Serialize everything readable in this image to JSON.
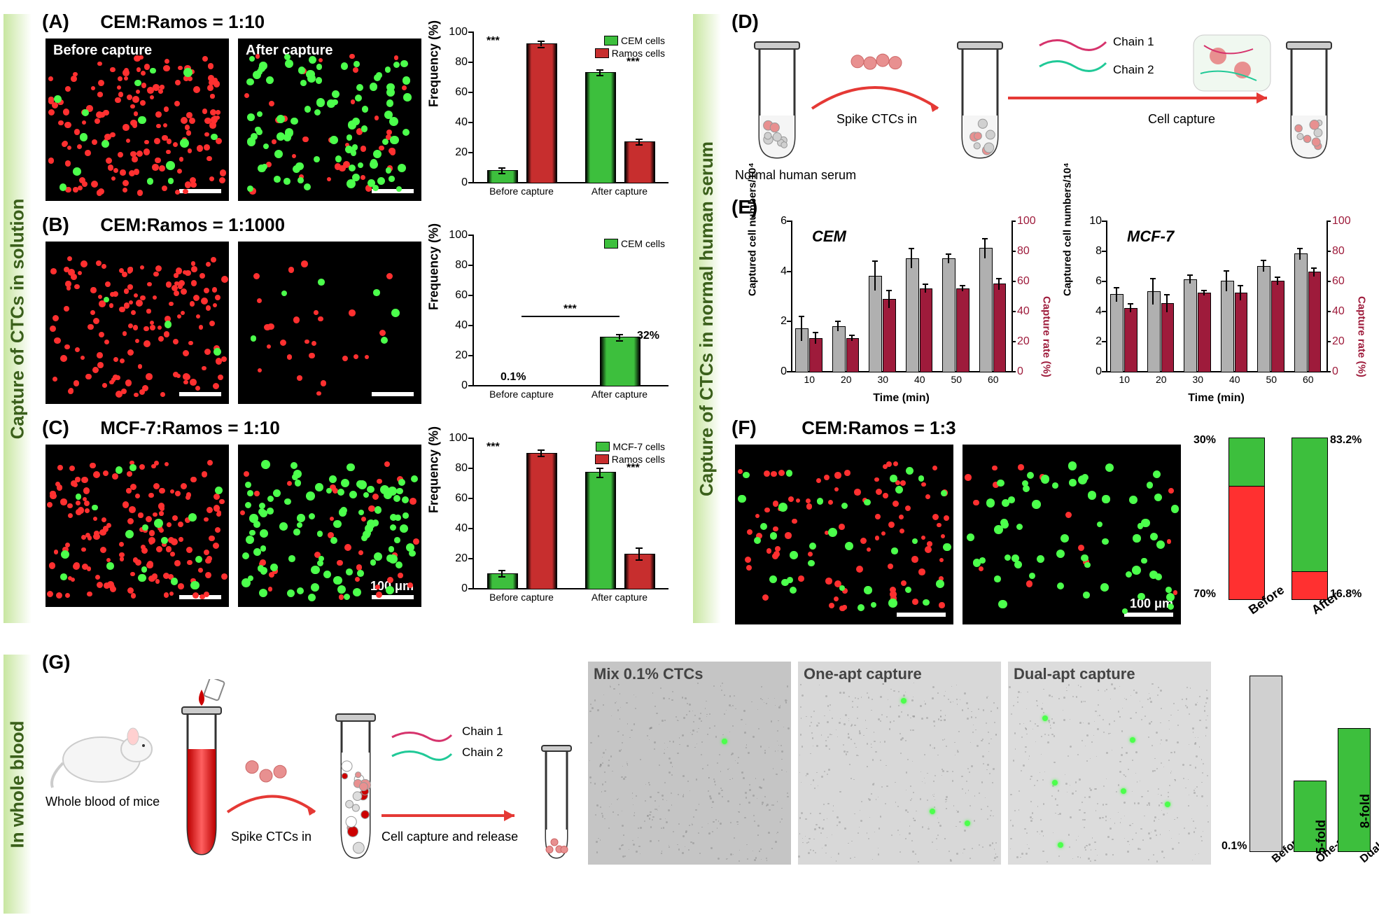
{
  "colors": {
    "green_bar": "#3dbf3d",
    "red_bar": "#c72e2e",
    "gray_bar": "#b0b0b0",
    "dark_red": "#9e1b3b",
    "cell_green": "#4cff4c",
    "cell_red": "#ff3030",
    "bg_black": "#000000",
    "arrow_red": "#e53935",
    "gradient_green": "#c8e6a0"
  },
  "section_labels": {
    "solution": "Capture of CTCs in solution",
    "serum": "Capture of CTCs in normal human serum",
    "blood": "In whole blood"
  },
  "A": {
    "label": "(A)",
    "title": "CEM:Ramos = 1:10",
    "img_labels": [
      "Before capture",
      "After capture"
    ],
    "dots_before": {
      "green": 15,
      "red": 150
    },
    "dots_after": {
      "green": 90,
      "red": 35
    },
    "chart": {
      "type": "bar",
      "ylabel": "Frequency (%)",
      "ylim": [
        0,
        100
      ],
      "ytick_step": 20,
      "categories": [
        "Before capture",
        "After capture"
      ],
      "series": [
        {
          "name": "CEM cells",
          "color": "#3dbf3d",
          "values": [
            8,
            73
          ],
          "err": [
            2,
            2
          ]
        },
        {
          "name": "Ramos cells",
          "color": "#c72e2e",
          "values": [
            92,
            27
          ],
          "err": [
            2,
            2
          ]
        }
      ],
      "sig": "***"
    }
  },
  "B": {
    "label": "(B)",
    "title": "CEM:Ramos = 1:1000",
    "dots_before": {
      "green": 3,
      "red": 140
    },
    "dots_after": {
      "green": 6,
      "red": 25
    },
    "chart": {
      "type": "bar",
      "ylabel": "Frequency (%)",
      "ylim": [
        0,
        100
      ],
      "ytick_step": 20,
      "categories": [
        "Before capture",
        "After capture"
      ],
      "series": [
        {
          "name": "CEM cells",
          "color": "#3dbf3d",
          "values": [
            0.1,
            32
          ],
          "err": [
            0,
            2
          ]
        }
      ],
      "annotations": [
        "0.1%",
        "32%"
      ],
      "sig": "***"
    }
  },
  "C": {
    "label": "(C)",
    "title": "MCF-7:Ramos = 1:10",
    "dots_before": {
      "green": 18,
      "red": 150
    },
    "dots_after": {
      "green": 100,
      "red": 35
    },
    "scale_text": "100 μm",
    "chart": {
      "type": "bar",
      "ylabel": "Frequency (%)",
      "ylim": [
        0,
        100
      ],
      "ytick_step": 20,
      "categories": [
        "Before capture",
        "After capture"
      ],
      "series": [
        {
          "name": "MCF-7 cells",
          "color": "#3dbf3d",
          "values": [
            10,
            77
          ],
          "err": [
            2,
            3
          ]
        },
        {
          "name": "Ramos cells",
          "color": "#c72e2e",
          "values": [
            90,
            23
          ],
          "err": [
            2,
            4
          ]
        }
      ],
      "sig": "***"
    }
  },
  "D": {
    "label": "(D)",
    "text": {
      "serum": "Normal human serum",
      "spike": "Spike CTCs in",
      "chain1": "Chain 1",
      "chain2": "Chain 2",
      "capture": "Cell capture"
    }
  },
  "E": {
    "label": "(E)",
    "charts": [
      {
        "title": "CEM",
        "xlabel": "Time (min)",
        "ylabel_left": "Captured cell numbers/10⁴",
        "ylim_left": [
          0,
          6
        ],
        "ytick_left": 2,
        "ylabel_right": "Capture rate (%)",
        "ylim_right": [
          0,
          100
        ],
        "ytick_right": 20,
        "categories": [
          "10",
          "20",
          "30",
          "40",
          "50",
          "60"
        ],
        "series": [
          {
            "color": "#b0b0b0",
            "values": [
              1.7,
              1.8,
              3.8,
              4.5,
              4.5,
              4.9
            ],
            "err": [
              0.5,
              0.2,
              0.6,
              0.4,
              0.2,
              0.4
            ]
          },
          {
            "color": "#9e1b3b",
            "values": [
              22,
              22,
              48,
              55,
              55,
              58
            ],
            "err": [
              4,
              2,
              6,
              3,
              2,
              4
            ]
          }
        ]
      },
      {
        "title": "MCF-7",
        "xlabel": "Time (min)",
        "ylabel_left": "Captured cell numbers/10⁴",
        "ylim_left": [
          0,
          10
        ],
        "ytick_left": 2,
        "ylabel_right": "Capture rate (%)",
        "ylim_right": [
          0,
          100
        ],
        "ytick_right": 20,
        "categories": [
          "10",
          "20",
          "30",
          "40",
          "50",
          "60"
        ],
        "series": [
          {
            "color": "#b0b0b0",
            "values": [
              5.1,
              5.3,
              6.1,
              6.0,
              7.0,
              7.8
            ],
            "err": [
              0.5,
              0.9,
              0.3,
              0.7,
              0.4,
              0.4
            ]
          },
          {
            "color": "#9e1b3b",
            "values": [
              42,
              45,
              52,
              52,
              60,
              66
            ],
            "err": [
              3,
              6,
              2,
              5,
              3,
              3
            ]
          }
        ]
      }
    ]
  },
  "F": {
    "label": "(F)",
    "title": "CEM:Ramos = 1:3",
    "dots_before": {
      "green": 35,
      "red": 85
    },
    "dots_after": {
      "green": 60,
      "red": 15
    },
    "scale_text": "100 μm",
    "chart": {
      "type": "stacked",
      "categories": [
        "Before",
        "After"
      ],
      "stacks": [
        {
          "green": 30,
          "red": 70,
          "labels": [
            "30%",
            "70%"
          ]
        },
        {
          "green": 83.2,
          "red": 16.8,
          "labels": [
            "83.2%",
            "16.8%"
          ]
        }
      ],
      "colors": {
        "green": "#3dbf3d",
        "red": "#ff3030"
      }
    }
  },
  "G": {
    "label": "(G)",
    "text": {
      "mice": "Whole blood of mice",
      "spike": "Spike CTCs in",
      "chain1": "Chain 1",
      "chain2": "Chain 2",
      "capture": "Cell capture and release"
    },
    "img_labels": [
      "Mix 0.1% CTCs",
      "One-apt capture",
      "Dual-apt capture"
    ],
    "chart": {
      "categories": [
        "Before",
        "One-apt",
        "Dual-apt"
      ],
      "values": [
        100,
        40,
        70
      ],
      "bar_labels": [
        "0.1%",
        "5-fold",
        "8-fold"
      ],
      "colors": [
        "#d0d0d0",
        "#3dbf3d",
        "#3dbf3d"
      ]
    }
  }
}
